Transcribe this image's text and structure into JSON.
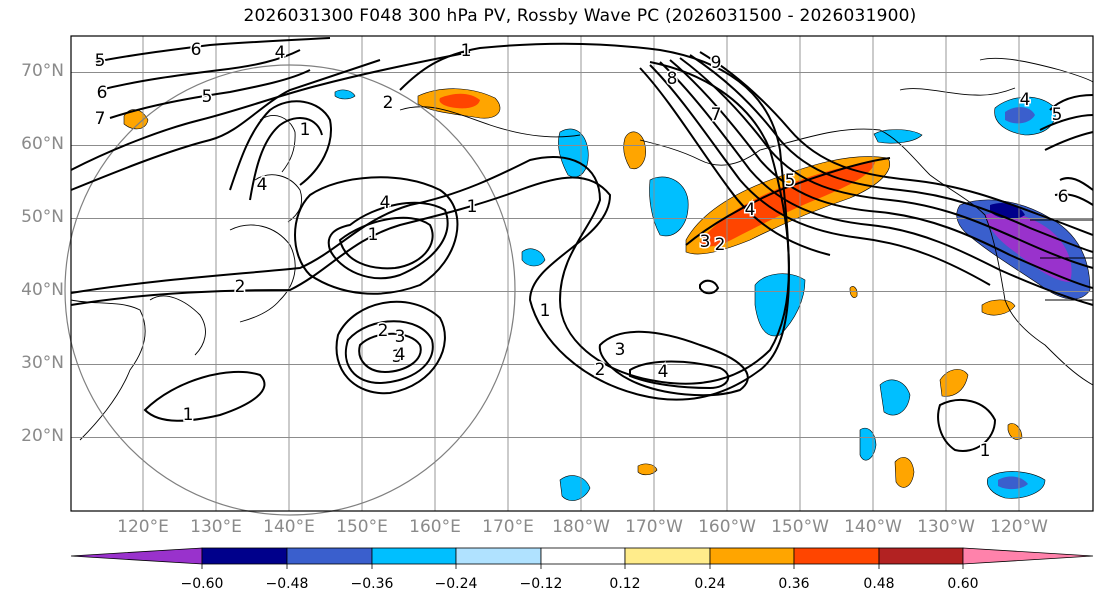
{
  "title": "2026031300 F048 300 hPa PV, Rossby Wave PC (2026031500 - 2026031900)",
  "lat_labels": [
    "70°N",
    "60°N",
    "50°N",
    "40°N",
    "30°N",
    "20°N"
  ],
  "lon_labels": [
    "120°E",
    "130°E",
    "140°E",
    "150°E",
    "160°E",
    "170°E",
    "180°W",
    "170°W",
    "160°W",
    "150°W",
    "140°W",
    "130°W",
    "120°W"
  ],
  "colorbar": {
    "ticks": [
      "−0.60",
      "−0.48",
      "−0.36",
      "−0.24",
      "−0.12",
      "0.12",
      "0.24",
      "0.36",
      "0.48",
      "0.60"
    ],
    "colors": [
      "#9932cc",
      "#00008b",
      "#3a5fcd",
      "#00bfff",
      "#b0e2ff",
      "#ffffff",
      "#ffec8b",
      "#ffa500",
      "#ff4500",
      "#b22222",
      "#ff82ab"
    ]
  },
  "contour_labels": [
    "5",
    "6",
    "4",
    "5",
    "6",
    "7",
    "4",
    "2",
    "1",
    "4",
    "1",
    "2",
    "1",
    "3",
    "2",
    "3",
    "4",
    "1",
    "2",
    "3",
    "4",
    "1",
    "8",
    "9",
    "7",
    "4",
    "5",
    "3",
    "2",
    "1",
    "4",
    "5",
    "6",
    "1"
  ],
  "chart_data": {
    "type": "map",
    "title": "2026031300 F048 300 hPa PV, Rossby Wave PC (2026031500 - 2026031900)",
    "fields": [
      "300 hPa PV contours (PVU)",
      "Rossby Wave PC (shaded)"
    ],
    "lon_range": [
      112,
      244
    ],
    "lat_range": [
      10,
      75
    ],
    "contour_levels": [
      1,
      2,
      3,
      4,
      5,
      6,
      7,
      8,
      9
    ],
    "shading_levels": [
      -0.6,
      -0.48,
      -0.36,
      -0.24,
      -0.12,
      0.12,
      0.24,
      0.36,
      0.48,
      0.6
    ],
    "shading_colors": [
      "#9932cc",
      "#00008b",
      "#3a5fcd",
      "#00bfff",
      "#b0e2ff",
      "#ffffff",
      "#ffec8b",
      "#ffa500",
      "#ff4500",
      "#b22222",
      "#ff82ab"
    ],
    "extend": "both",
    "annotations": [
      "grey circle centred near 140°E 40°N"
    ]
  }
}
